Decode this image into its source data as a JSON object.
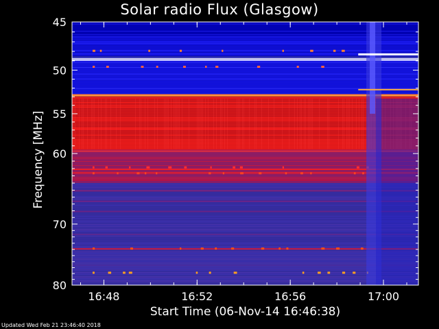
{
  "chart_data": {
    "type": "heatmap",
    "title": "Solar radio Flux (Glasgow)",
    "xlabel": "Start Time (06-Nov-14 16:46:38)",
    "ylabel": "Frequency [MHz]",
    "x_ticks": [
      "16:48",
      "16:52",
      "16:56",
      "17:00"
    ],
    "y_ticks": [
      45,
      50,
      55,
      60,
      70,
      80
    ],
    "y_range": [
      45,
      80
    ],
    "x_range": [
      "16:46:38",
      "17:01:30"
    ],
    "y_scale": "log",
    "colormap": [
      "#0000a0",
      "#2020ff",
      "#5050b0",
      "#7a2a8a",
      "#c0102a",
      "#ff1010",
      "#ff9020",
      "#ffffff"
    ],
    "bands": [
      {
        "f_start": 45,
        "f_end": 46.5,
        "level": "blue-dark"
      },
      {
        "f_start": 46.5,
        "f_end": 48.5,
        "level": "blue"
      },
      {
        "f_start": 48.7,
        "f_end": 49.0,
        "level": "white"
      },
      {
        "f_start": 49.0,
        "f_end": 52.7,
        "level": "blue"
      },
      {
        "f_start": 52.7,
        "f_end": 53.0,
        "level": "orange"
      },
      {
        "f_start": 53.0,
        "f_end": 59.5,
        "level": "red"
      },
      {
        "f_start": 59.5,
        "f_end": 64.0,
        "level": "red-purple"
      },
      {
        "f_start": 64.0,
        "f_end": 80.0,
        "level": "purple"
      }
    ],
    "burst_time": "16:59:30"
  },
  "footer": {
    "updated": "Updated Wed Feb 21 23:46:40 2018"
  }
}
